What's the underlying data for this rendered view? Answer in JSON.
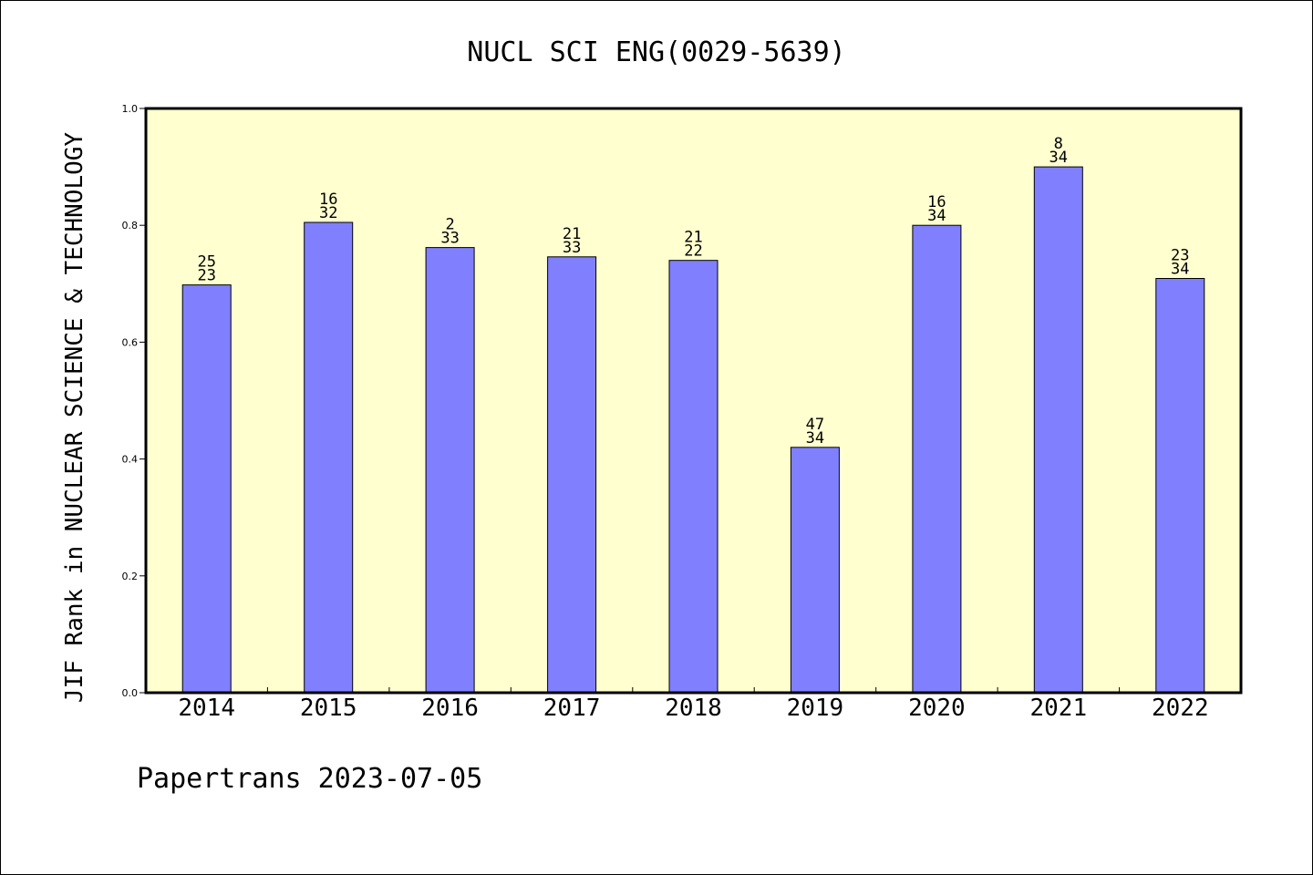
{
  "chart_data": {
    "type": "bar",
    "title": "NUCL SCI ENG(0029-5639)",
    "ylabel": "JIF Rank in NUCLEAR SCIENCE & TECHNOLOGY",
    "xlabel": "",
    "categories": [
      "2014",
      "2015",
      "2016",
      "2017",
      "2018",
      "2019",
      "2020",
      "2021",
      "2022"
    ],
    "values": [
      0.698,
      0.805,
      0.762,
      0.746,
      0.74,
      0.42,
      0.8,
      0.9,
      0.709
    ],
    "rank_labels": [
      [
        "25",
        "23"
      ],
      [
        "16",
        "32"
      ],
      [
        "2",
        "33"
      ],
      [
        "21",
        "33"
      ],
      [
        "21",
        "22"
      ],
      [
        "47",
        "34"
      ],
      [
        "16",
        "34"
      ],
      [
        "8",
        "34"
      ],
      [
        "23",
        "34"
      ]
    ],
    "ylim": [
      0,
      1.0
    ],
    "yticks": [
      "0.0",
      "0.2",
      "0.4",
      "0.6",
      "0.8",
      "1.0"
    ],
    "grid": false,
    "colors": {
      "bar": "#8080ff",
      "plot_background": "#ffffd0",
      "axis": "#000000"
    }
  },
  "footer": {
    "text": "Papertrans 2023-07-05"
  }
}
